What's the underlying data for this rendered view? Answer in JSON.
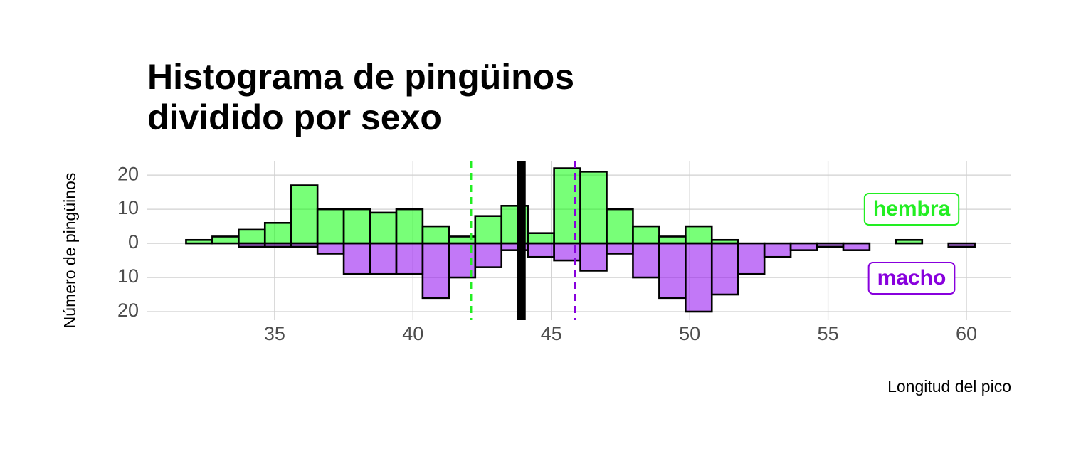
{
  "chart_data": {
    "type": "histogram",
    "title": "Histograma de pingüinos dividido por sexo",
    "xlabel": "Longitud del pico",
    "ylabel": "Número de pingüinos",
    "bins": [
      31.8,
      32.75,
      33.7,
      34.65,
      35.6,
      36.55,
      37.5,
      38.45,
      39.4,
      40.35,
      41.3,
      42.25,
      43.2,
      44.15,
      45.1,
      46.05,
      47.0,
      47.95,
      48.9,
      49.85,
      50.8,
      51.75,
      52.7,
      53.65,
      54.6,
      55.55,
      56.5,
      57.45,
      58.4,
      59.35,
      60.3
    ],
    "series": [
      {
        "name": "hembra",
        "color": "#00ff00",
        "label_color": "#22ee22",
        "values": [
          1,
          2,
          4,
          6,
          17,
          10,
          10,
          9,
          10,
          5,
          2,
          8,
          11,
          3,
          22,
          21,
          10,
          5,
          2,
          5,
          1,
          0,
          0,
          0,
          0,
          0,
          0,
          1,
          0,
          0
        ]
      },
      {
        "name": "macho",
        "color": "#8b00f0",
        "label_color": "#8800dd",
        "values": [
          0,
          0,
          -1,
          -1,
          -1,
          -3,
          -9,
          -9,
          -9,
          -16,
          -10,
          -7,
          -2,
          -4,
          -5,
          -8,
          -3,
          -10,
          -16,
          -20,
          -15,
          -9,
          -4,
          -2,
          -1,
          -2,
          0,
          0,
          0,
          -1
        ]
      }
    ],
    "vlines": [
      {
        "value": 43.92,
        "color": "#000000",
        "linestyle": "solid"
      },
      {
        "value": 42.1,
        "color": "#22ee22",
        "linestyle": "dashed"
      },
      {
        "value": 45.85,
        "color": "#8800dd",
        "linestyle": "dashed"
      }
    ],
    "xlim": [
      30.4,
      61.62
    ],
    "xticks": [
      35,
      40,
      45,
      50,
      55,
      60
    ],
    "ylim": [
      -22.5,
      24.2
    ],
    "yticks": [
      {
        "value": -20,
        "label": "20"
      },
      {
        "value": -10,
        "label": "10"
      },
      0,
      10,
      20
    ],
    "grid": true
  }
}
